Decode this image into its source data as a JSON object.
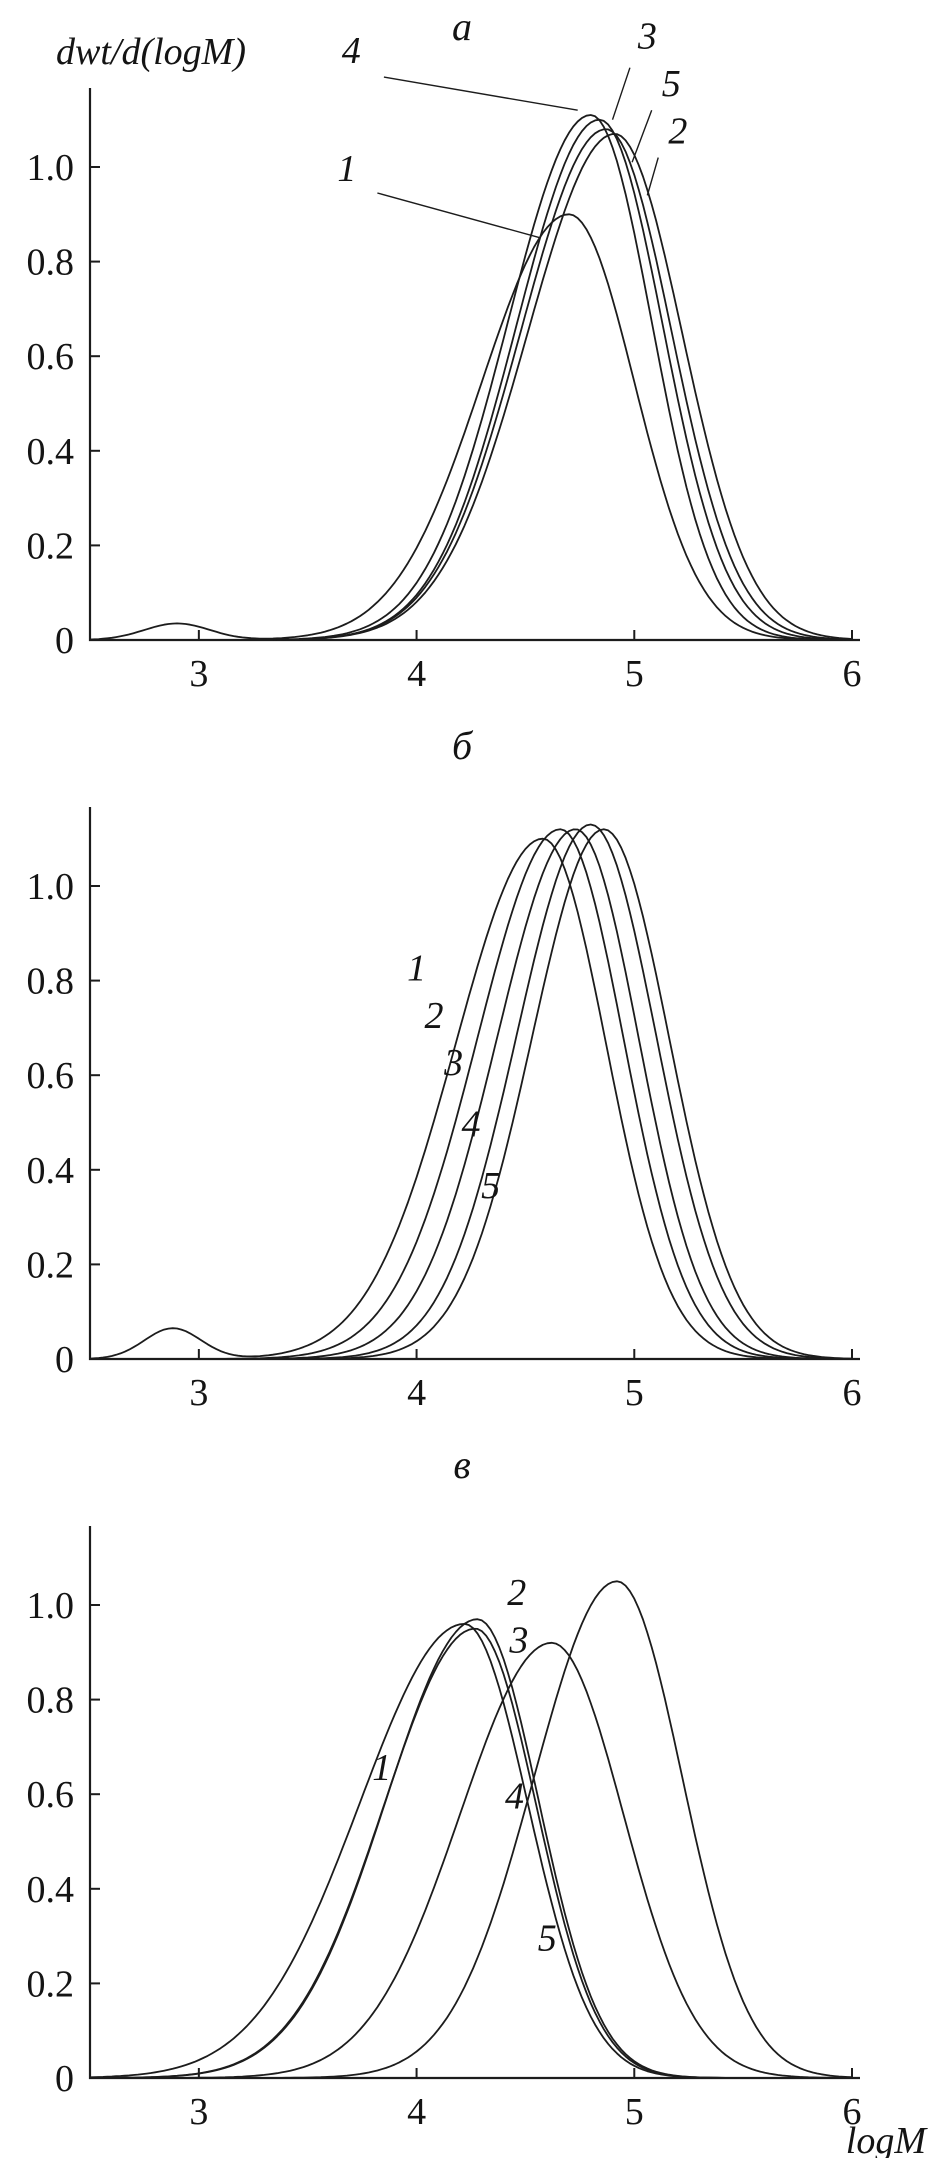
{
  "figure": {
    "background": "#ffffff",
    "ink_color": "#1c1c1c",
    "y_axis_label": "dwt/d(logM)",
    "x_axis_label": "logM"
  },
  "chart_data": [
    {
      "type": "line",
      "panel": "a",
      "title": "а",
      "xlabel": "",
      "ylabel": "dwt/d(logM)",
      "xlim": [
        2.5,
        6.0
      ],
      "ylim": [
        0,
        1.167
      ],
      "xtick_values": [
        3,
        4,
        5,
        6
      ],
      "xtick_labels": [
        "3",
        "4",
        "5",
        "6"
      ],
      "ytick_values": [
        0,
        0.2,
        0.4,
        0.6,
        0.8,
        1.0
      ],
      "ytick_labels": [
        "0",
        "0.2",
        "0.4",
        "0.6",
        "0.8",
        "1.0"
      ],
      "grid": false,
      "legend": "none",
      "show_ylabel": true,
      "show_xlabel": false,
      "series": [
        {
          "name": "1",
          "peak_x": 4.7,
          "peak_y": 0.9,
          "sigma_left": 0.4,
          "sigma_right": 0.3,
          "bump": {
            "x": 2.9,
            "y": 0.035,
            "sigma": 0.15
          }
        },
        {
          "name": "2",
          "peak_x": 4.91,
          "peak_y": 1.07,
          "sigma_left": 0.4,
          "sigma_right": 0.31
        },
        {
          "name": "3",
          "peak_x": 4.84,
          "peak_y": 1.1,
          "sigma_left": 0.38,
          "sigma_right": 0.29
        },
        {
          "name": "4",
          "peak_x": 4.8,
          "peak_y": 1.11,
          "sigma_left": 0.38,
          "sigma_right": 0.28
        },
        {
          "name": "5",
          "peak_x": 4.87,
          "peak_y": 1.08,
          "sigma_left": 0.39,
          "sigma_right": 0.3
        }
      ],
      "annotations": [
        {
          "label": "1",
          "x": 3.68,
          "y": 0.97,
          "leader": [
            [
              3.82,
              0.945
            ],
            [
              4.57,
              0.85
            ]
          ]
        },
        {
          "label": "4",
          "x": 3.7,
          "y": 1.22,
          "leader": [
            [
              3.85,
              1.19
            ],
            [
              4.74,
              1.12
            ]
          ]
        },
        {
          "label": "3",
          "x": 5.06,
          "y": 1.25,
          "leader": [
            [
              4.98,
              1.21
            ],
            [
              4.9,
              1.1
            ]
          ]
        },
        {
          "label": "5",
          "x": 5.17,
          "y": 1.15,
          "leader": [
            [
              5.08,
              1.12
            ],
            [
              4.99,
              1.01
            ]
          ]
        },
        {
          "label": "2",
          "x": 5.2,
          "y": 1.05,
          "leader": [
            [
              5.11,
              1.02
            ],
            [
              5.06,
              0.94
            ]
          ]
        }
      ]
    },
    {
      "type": "line",
      "panel": "b",
      "title": "б",
      "xlabel": "",
      "ylabel": "",
      "xlim": [
        2.5,
        6.0
      ],
      "ylim": [
        0,
        1.167
      ],
      "xtick_values": [
        3,
        4,
        5,
        6
      ],
      "xtick_labels": [
        "3",
        "4",
        "5",
        "6"
      ],
      "ytick_values": [
        0,
        0.2,
        0.4,
        0.6,
        0.8,
        1.0
      ],
      "ytick_labels": [
        "0",
        "0.2",
        "0.4",
        "0.6",
        "0.8",
        "1.0"
      ],
      "grid": false,
      "legend": "none",
      "show_ylabel": false,
      "show_xlabel": false,
      "series": [
        {
          "name": "1",
          "peak_x": 4.58,
          "peak_y": 1.1,
          "sigma_left": 0.4,
          "sigma_right": 0.29,
          "bump": {
            "x": 2.88,
            "y": 0.065,
            "sigma": 0.13
          }
        },
        {
          "name": "2",
          "peak_x": 4.66,
          "peak_y": 1.12,
          "sigma_left": 0.38,
          "sigma_right": 0.29
        },
        {
          "name": "3",
          "peak_x": 4.73,
          "peak_y": 1.12,
          "sigma_left": 0.36,
          "sigma_right": 0.29
        },
        {
          "name": "4",
          "peak_x": 4.8,
          "peak_y": 1.13,
          "sigma_left": 0.34,
          "sigma_right": 0.3
        },
        {
          "name": "5",
          "peak_x": 4.86,
          "peak_y": 1.12,
          "sigma_left": 0.33,
          "sigma_right": 0.3
        }
      ],
      "annotations": [
        {
          "label": "1",
          "x": 4.0,
          "y": 0.8
        },
        {
          "label": "2",
          "x": 4.08,
          "y": 0.7
        },
        {
          "label": "3",
          "x": 4.17,
          "y": 0.6
        },
        {
          "label": "4",
          "x": 4.25,
          "y": 0.47
        },
        {
          "label": "5",
          "x": 4.34,
          "y": 0.34
        }
      ]
    },
    {
      "type": "line",
      "panel": "v",
      "title": "в",
      "xlabel": "logM",
      "ylabel": "",
      "xlim": [
        2.5,
        6.0
      ],
      "ylim": [
        0,
        1.167
      ],
      "xtick_values": [
        3,
        4,
        5,
        6
      ],
      "xtick_labels": [
        "3",
        "4",
        "5",
        "6"
      ],
      "ytick_values": [
        0,
        0.2,
        0.4,
        0.6,
        0.8,
        1.0
      ],
      "ytick_labels": [
        "0",
        "0.2",
        "0.4",
        "0.6",
        "0.8",
        "1.0"
      ],
      "grid": false,
      "legend": "none",
      "show_ylabel": false,
      "show_xlabel": true,
      "series": [
        {
          "name": "1",
          "peak_x": 4.22,
          "peak_y": 0.96,
          "sigma_left": 0.48,
          "sigma_right": 0.29
        },
        {
          "name": "2",
          "peak_x": 4.28,
          "peak_y": 0.97,
          "sigma_left": 0.42,
          "sigma_right": 0.28
        },
        {
          "name": "3",
          "peak_x": 4.27,
          "peak_y": 0.95,
          "sigma_left": 0.42,
          "sigma_right": 0.28
        },
        {
          "name": "4",
          "peak_x": 4.62,
          "peak_y": 0.92,
          "sigma_left": 0.42,
          "sigma_right": 0.33
        },
        {
          "name": "5",
          "peak_x": 4.92,
          "peak_y": 1.05,
          "sigma_left": 0.38,
          "sigma_right": 0.3
        }
      ],
      "annotations": [
        {
          "label": "1",
          "x": 3.84,
          "y": 0.63
        },
        {
          "label": "2",
          "x": 4.46,
          "y": 1.0
        },
        {
          "label": "3",
          "x": 4.47,
          "y": 0.9
        },
        {
          "label": "4",
          "x": 4.45,
          "y": 0.57
        },
        {
          "label": "5",
          "x": 4.6,
          "y": 0.27
        }
      ]
    }
  ]
}
